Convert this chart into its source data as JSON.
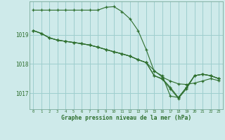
{
  "title": "Graphe pression niveau de la mer (hPa)",
  "background_color": "#ceeaea",
  "grid_color": "#9ecece",
  "line_color": "#2d6e2d",
  "xlim": [
    -0.5,
    23.5
  ],
  "ylim": [
    1016.45,
    1020.15
  ],
  "yticks": [
    1017,
    1018,
    1019
  ],
  "xticks": [
    0,
    1,
    2,
    3,
    4,
    5,
    6,
    7,
    8,
    9,
    10,
    11,
    12,
    13,
    14,
    15,
    16,
    17,
    18,
    19,
    20,
    21,
    22,
    23
  ],
  "series": [
    [
      1019.85,
      1019.85,
      1019.85,
      1019.85,
      1019.85,
      1019.85,
      1019.85,
      1019.85,
      1019.85,
      1019.95,
      1019.97,
      1019.8,
      1019.55,
      1019.15,
      1018.5,
      1017.75,
      1017.6,
      1016.9,
      1016.85,
      1017.2,
      1017.6,
      1017.65,
      1017.6,
      1017.5
    ],
    [
      1019.15,
      1019.05,
      1018.9,
      1018.82,
      1018.78,
      1018.74,
      1018.7,
      1018.65,
      1018.58,
      1018.5,
      1018.42,
      1018.35,
      1018.27,
      1018.15,
      1018.05,
      1017.78,
      1017.55,
      1017.42,
      1017.32,
      1017.3,
      1017.35,
      1017.42,
      1017.5,
      1017.43
    ],
    [
      1019.15,
      1019.05,
      1018.9,
      1018.82,
      1018.78,
      1018.74,
      1018.7,
      1018.65,
      1018.58,
      1018.5,
      1018.42,
      1018.35,
      1018.27,
      1018.15,
      1018.05,
      1017.6,
      1017.5,
      1017.2,
      1016.85,
      1017.2,
      1017.6,
      1017.65,
      1017.6,
      1017.5
    ],
    [
      1019.15,
      1019.05,
      1018.9,
      1018.82,
      1018.78,
      1018.74,
      1018.7,
      1018.65,
      1018.58,
      1018.5,
      1018.42,
      1018.35,
      1018.27,
      1018.15,
      1018.05,
      1017.6,
      1017.48,
      1017.15,
      1016.82,
      1017.15,
      1017.6,
      1017.65,
      1017.6,
      1017.5
    ]
  ]
}
